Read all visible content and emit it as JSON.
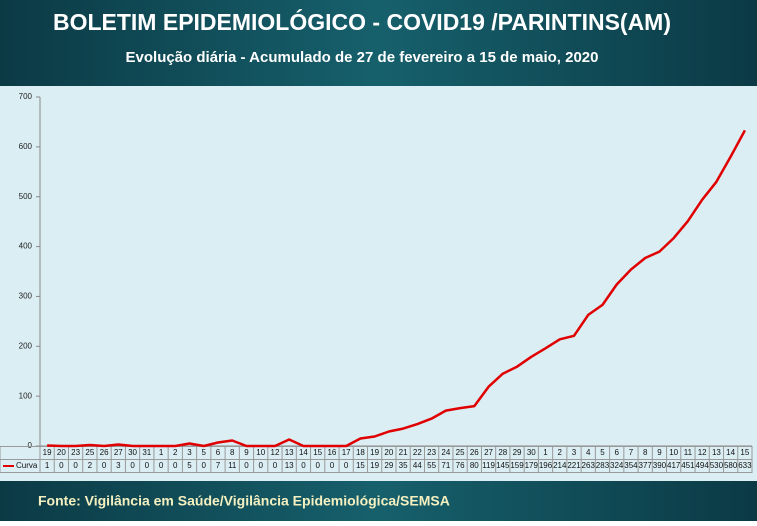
{
  "chart_data": {
    "type": "line",
    "title": "BOLETIM EPIDEMIOLÓGICO - COVID19 /PARINTINS(AM)",
    "subtitle": "Evolução diária - Acumulado de 27 de fevereiro a 15 de maio, 2020",
    "source": "Fonte: Vigilância em Saúde/Vigilância Epidemiológica/SEMSA",
    "categories": [
      "19",
      "20",
      "23",
      "25",
      "26",
      "27",
      "30",
      "31",
      "1",
      "2",
      "3",
      "5",
      "6",
      "8",
      "9",
      "10",
      "12",
      "13",
      "14",
      "15",
      "16",
      "17",
      "18",
      "19",
      "20",
      "21",
      "22",
      "23",
      "24",
      "25",
      "26",
      "27",
      "28",
      "29",
      "30",
      "1",
      "2",
      "3",
      "4",
      "5",
      "6",
      "7",
      "8",
      "9",
      "10",
      "11",
      "12",
      "13",
      "14",
      "15"
    ],
    "series": [
      {
        "name": "Curva",
        "color": "#e00000",
        "values": [
          1,
          0,
          0,
          2,
          0,
          3,
          0,
          0,
          0,
          0,
          5,
          0,
          7,
          11,
          0,
          0,
          0,
          13,
          0,
          0,
          0,
          0,
          15,
          19,
          29,
          35,
          44,
          55,
          71,
          76,
          80,
          119,
          145,
          159,
          179,
          196,
          214,
          221,
          263,
          283,
          324,
          354,
          377,
          390,
          417,
          451,
          494,
          530,
          580,
          633
        ]
      }
    ],
    "ylim": [
      0,
      700
    ],
    "yticks": [
      0,
      100,
      200,
      300,
      400,
      500,
      600,
      700
    ],
    "grid": false
  }
}
